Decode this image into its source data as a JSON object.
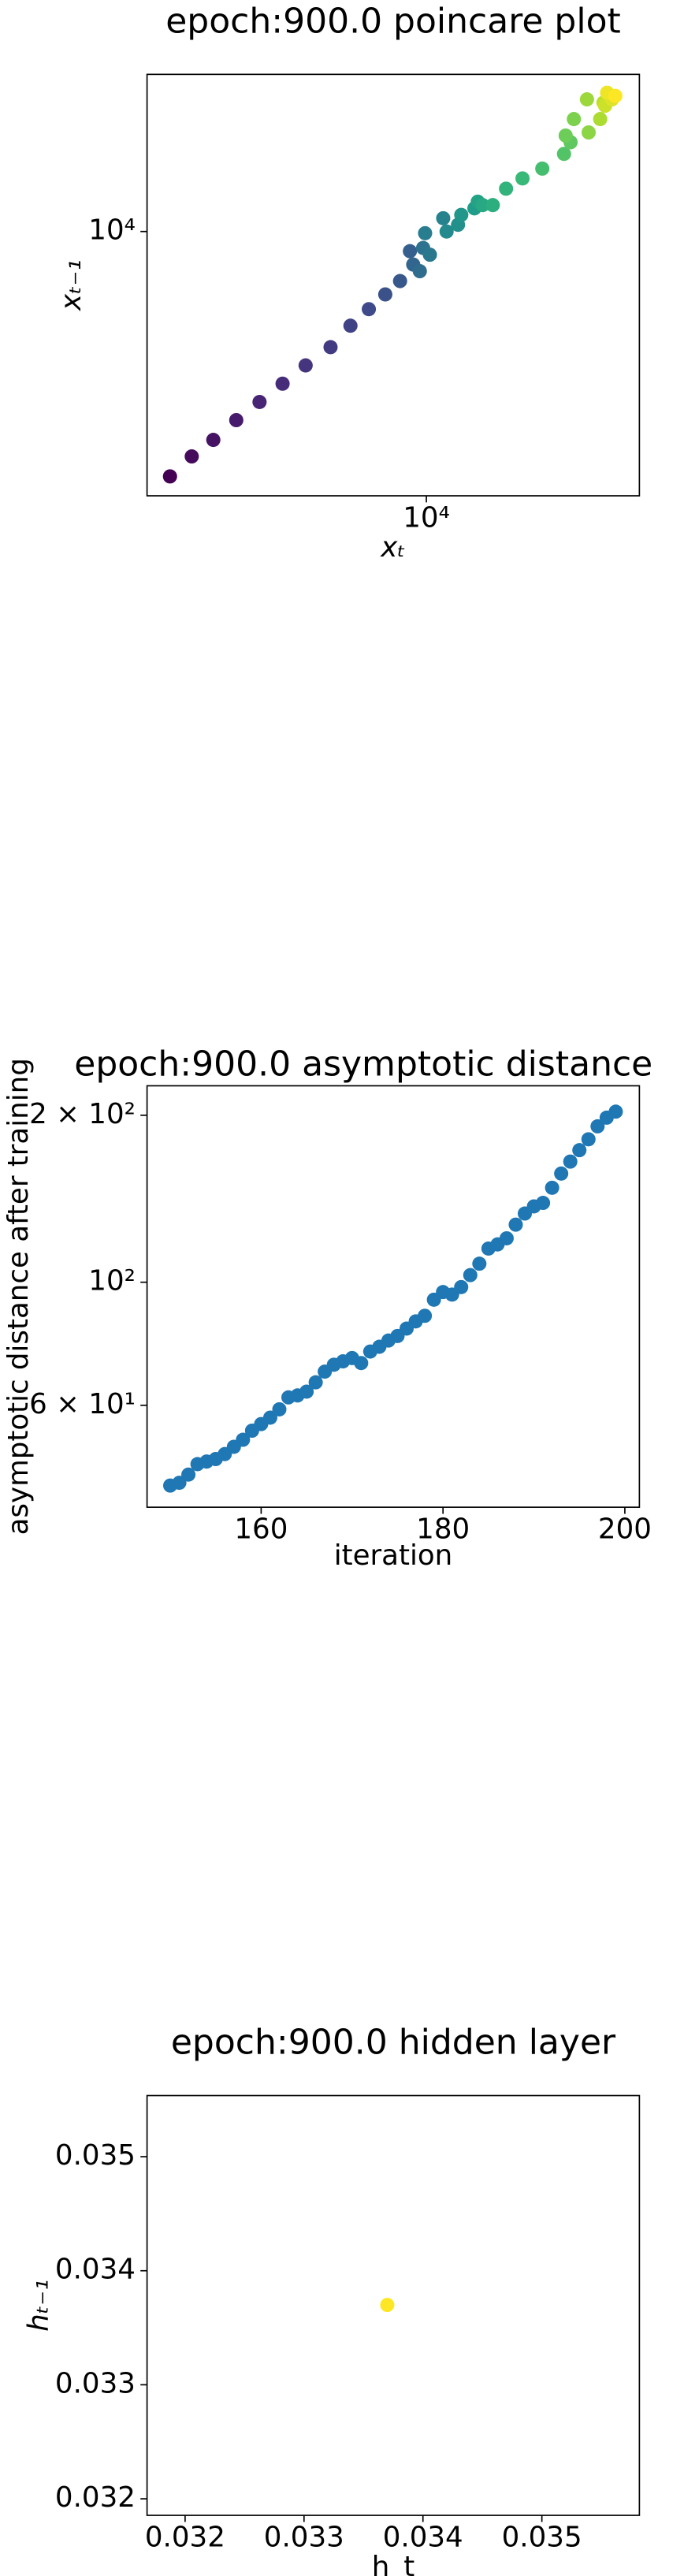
{
  "chart_data": [
    {
      "type": "scatter",
      "title": "epoch:900.0 poincare plot",
      "x_label": "xₜ",
      "y_label": "xₜ₋₁",
      "xscale": "log",
      "yscale": "log",
      "colormap": "viridis",
      "xlim": [
        2090,
        33000
      ],
      "ylim": [
        1770,
        28000
      ],
      "xticks": [
        {
          "value": 10000,
          "label": "10⁴"
        }
      ],
      "yticks": [
        {
          "value": 10000,
          "label": "10⁴"
        }
      ],
      "x": [
        2377,
        2685,
        3030,
        3446,
        3926,
        4467,
        5083,
        5845,
        6535,
        7244,
        7943,
        8630,
        9120,
        9290,
        9640,
        9820,
        10200,
        9930,
        10990,
        11200,
        11940,
        12160,
        13090,
        13340,
        13710,
        14510,
        15630,
        17140,
        19150,
        21630,
        22440,
        21830,
        22860,
        24830,
        24600,
        26490,
        26980,
        27230,
        28310,
        27540,
        28840
      ],
      "y": [
        2010,
        2291,
        2553,
        2906,
        3273,
        3690,
        4159,
        4688,
        5395,
        6012,
        6622,
        7228,
        8790,
        8054,
        7710,
        8980,
        8590,
        9890,
        10910,
        10000,
        10450,
        11150,
        11640,
        12160,
        11890,
        11890,
        13240,
        14160,
        15100,
        16630,
        17950,
        18750,
        20890,
        19140,
        23770,
        20890,
        23270,
        22800,
        23770,
        24830,
        24320
      ]
    },
    {
      "type": "scatter",
      "title": "epoch:900.0 asymptotic distance",
      "x_label": "iteration",
      "y_label": "asymptotic distance after training",
      "xscale": "linear",
      "yscale": "log",
      "color": "#1f77b4",
      "xlim": [
        147.45,
        201.6
      ],
      "ylim": [
        39.3,
        226
      ],
      "xticks": [
        160,
        180,
        200
      ],
      "yticks": [
        {
          "value": 200,
          "label": "2 × 10²"
        },
        {
          "value": 100,
          "label": "10²"
        },
        {
          "value": 60,
          "label": "6 × 10¹"
        }
      ],
      "x": [
        150,
        151,
        152,
        153,
        154,
        155,
        156,
        157,
        158,
        159,
        160,
        161,
        162,
        163,
        164,
        165,
        166,
        167,
        168,
        169,
        170,
        171,
        172,
        173,
        174,
        175,
        176,
        177,
        178,
        179,
        180,
        181,
        182,
        183,
        184,
        185,
        186,
        187,
        188,
        189,
        190,
        191,
        192,
        193,
        194,
        195,
        196,
        197,
        198,
        199
      ],
      "y": [
        43,
        43.5,
        45,
        47,
        47.5,
        48,
        49,
        50.5,
        52,
        54,
        55.5,
        57,
        59,
        62,
        62.5,
        63.5,
        66,
        69,
        71,
        72,
        73,
        71.5,
        75,
        76.5,
        78.5,
        80,
        82.5,
        85,
        87,
        93,
        96,
        95,
        98,
        103,
        108,
        115,
        117,
        120,
        127,
        133,
        137,
        139,
        148,
        157,
        165,
        173,
        181,
        191,
        198,
        203
      ]
    },
    {
      "type": "scatter",
      "title": "epoch:900.0 hidden layer",
      "x_label": "h_t",
      "y_label": "hₜ₋₁",
      "xscale": "linear",
      "yscale": "linear",
      "color": "#fde725",
      "xlim": [
        0.03168,
        0.03582
      ],
      "ylim": [
        0.031855,
        0.035536
      ],
      "xticks": [
        0.032,
        0.033,
        0.034,
        0.035
      ],
      "yticks": [
        0.032,
        0.033,
        0.034,
        0.035
      ],
      "x": [
        0.0337
      ],
      "y": [
        0.0337
      ]
    }
  ]
}
